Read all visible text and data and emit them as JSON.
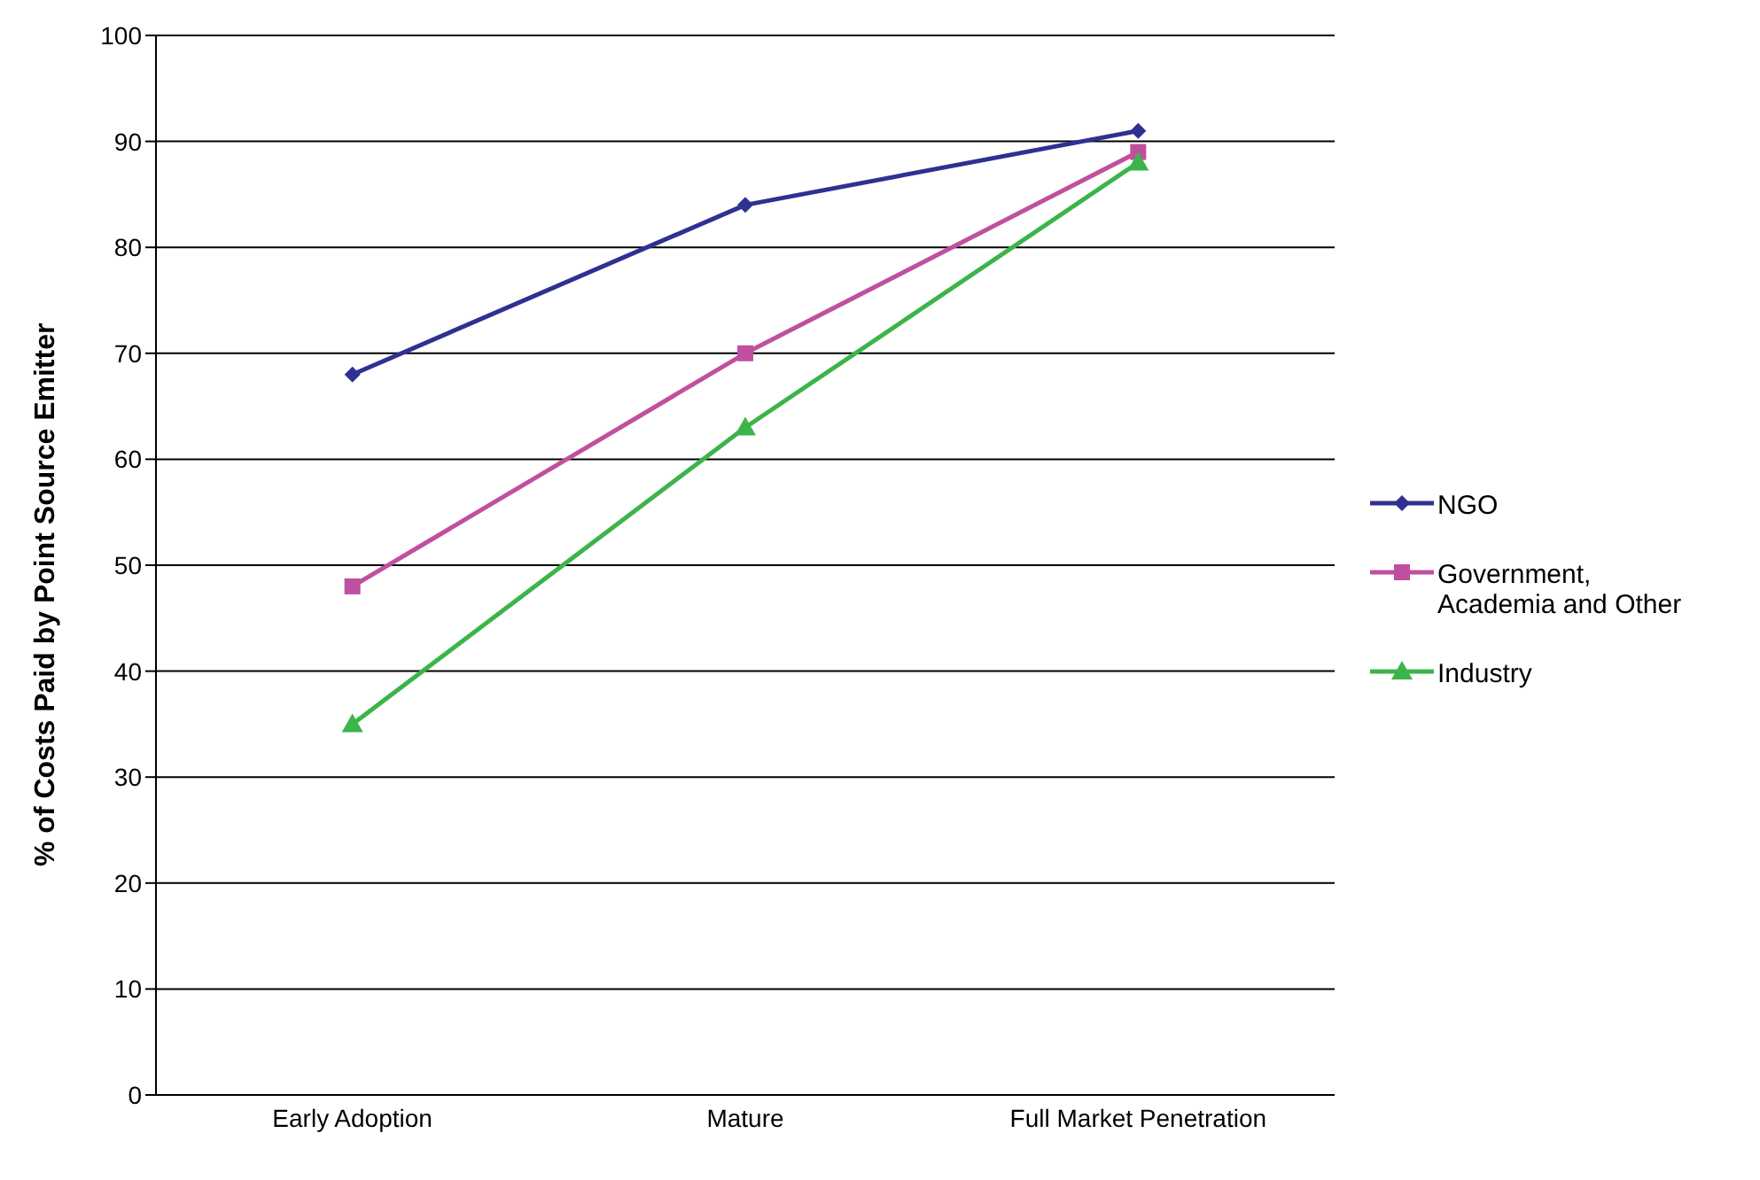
{
  "chart_data": {
    "type": "line",
    "ylabel": "% of Costs Paid by Point Source Emitter",
    "categories": [
      "Early Adoption",
      "Mature",
      "Full Market Penetration"
    ],
    "series": [
      {
        "name": "NGO",
        "color": "#2e3192",
        "values": [
          68,
          84,
          91
        ],
        "marker": "diamond"
      },
      {
        "name": "Government, Academia and Other",
        "color": "#c0509f",
        "values": [
          48,
          70,
          89
        ],
        "marker": "square"
      },
      {
        "name": "Industry",
        "color": "#3cb44a",
        "values": [
          35,
          63,
          88
        ],
        "marker": "triangle"
      }
    ],
    "ylim": [
      0,
      100
    ],
    "yticks": [
      0,
      10,
      20,
      30,
      40,
      50,
      60,
      70,
      80,
      90,
      100
    ],
    "grid": "y",
    "legend": "right"
  }
}
